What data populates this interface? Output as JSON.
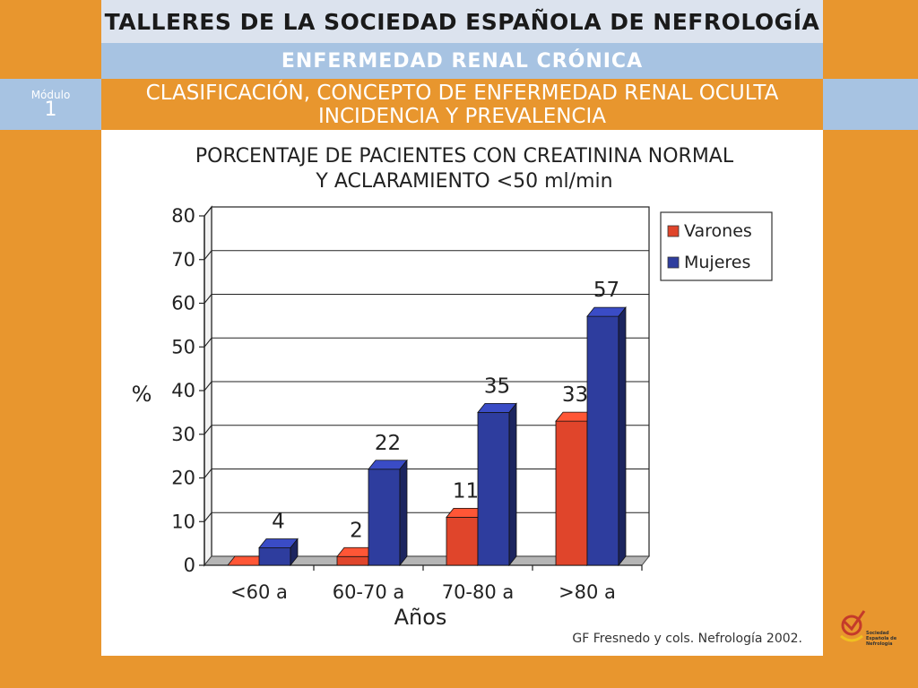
{
  "header": {
    "title": "TALLERES DE LA SOCIEDAD ESPAÑOLA DE NEFROLOGÍA",
    "subtitle": "ENFERMEDAD RENAL CRÓNICA",
    "module_label": "Módulo",
    "module_number": "1",
    "section_line1": "CLASIFICACIÓN, CONCEPTO DE ENFERMEDAD RENAL OCULTA",
    "section_line2": "INCIDENCIA Y PREVALENCIA"
  },
  "chart_data": {
    "type": "bar",
    "title_line1": "PORCENTAJE DE PACIENTES CON CREATININA NORMAL",
    "title_line2": "Y ACLARAMIENTO <50 ml/min",
    "categories": [
      "<60 a",
      "60-70 a",
      "70-80 a",
      ">80 a"
    ],
    "series": [
      {
        "name": "Varones",
        "values": [
          0,
          2,
          11,
          33
        ],
        "labels": [
          "",
          "2",
          "11",
          "33"
        ],
        "color": "#E0452B"
      },
      {
        "name": "Mujeres",
        "values": [
          4,
          22,
          35,
          57
        ],
        "labels": [
          "4",
          "22",
          "35",
          "57"
        ],
        "color": "#2E3D9E"
      }
    ],
    "xlabel": "Años",
    "ylabel": "%",
    "ylim": [
      0,
      80
    ],
    "yticks": [
      0,
      10,
      20,
      30,
      40,
      50,
      60,
      70,
      80
    ],
    "grid": true,
    "legend_position": "top-right",
    "source": "GF Fresnedo y cols. Nefrología 2002."
  },
  "footer": {
    "logo_line1": "Sociedad",
    "logo_line2": "Española de",
    "logo_line3": "Nefrología"
  },
  "colors": {
    "background": "#E8962E",
    "header_light": "#DCE3EE",
    "header_blue": "#A7C3E2",
    "varones": "#E0452B",
    "mujeres": "#2E3D9E"
  }
}
